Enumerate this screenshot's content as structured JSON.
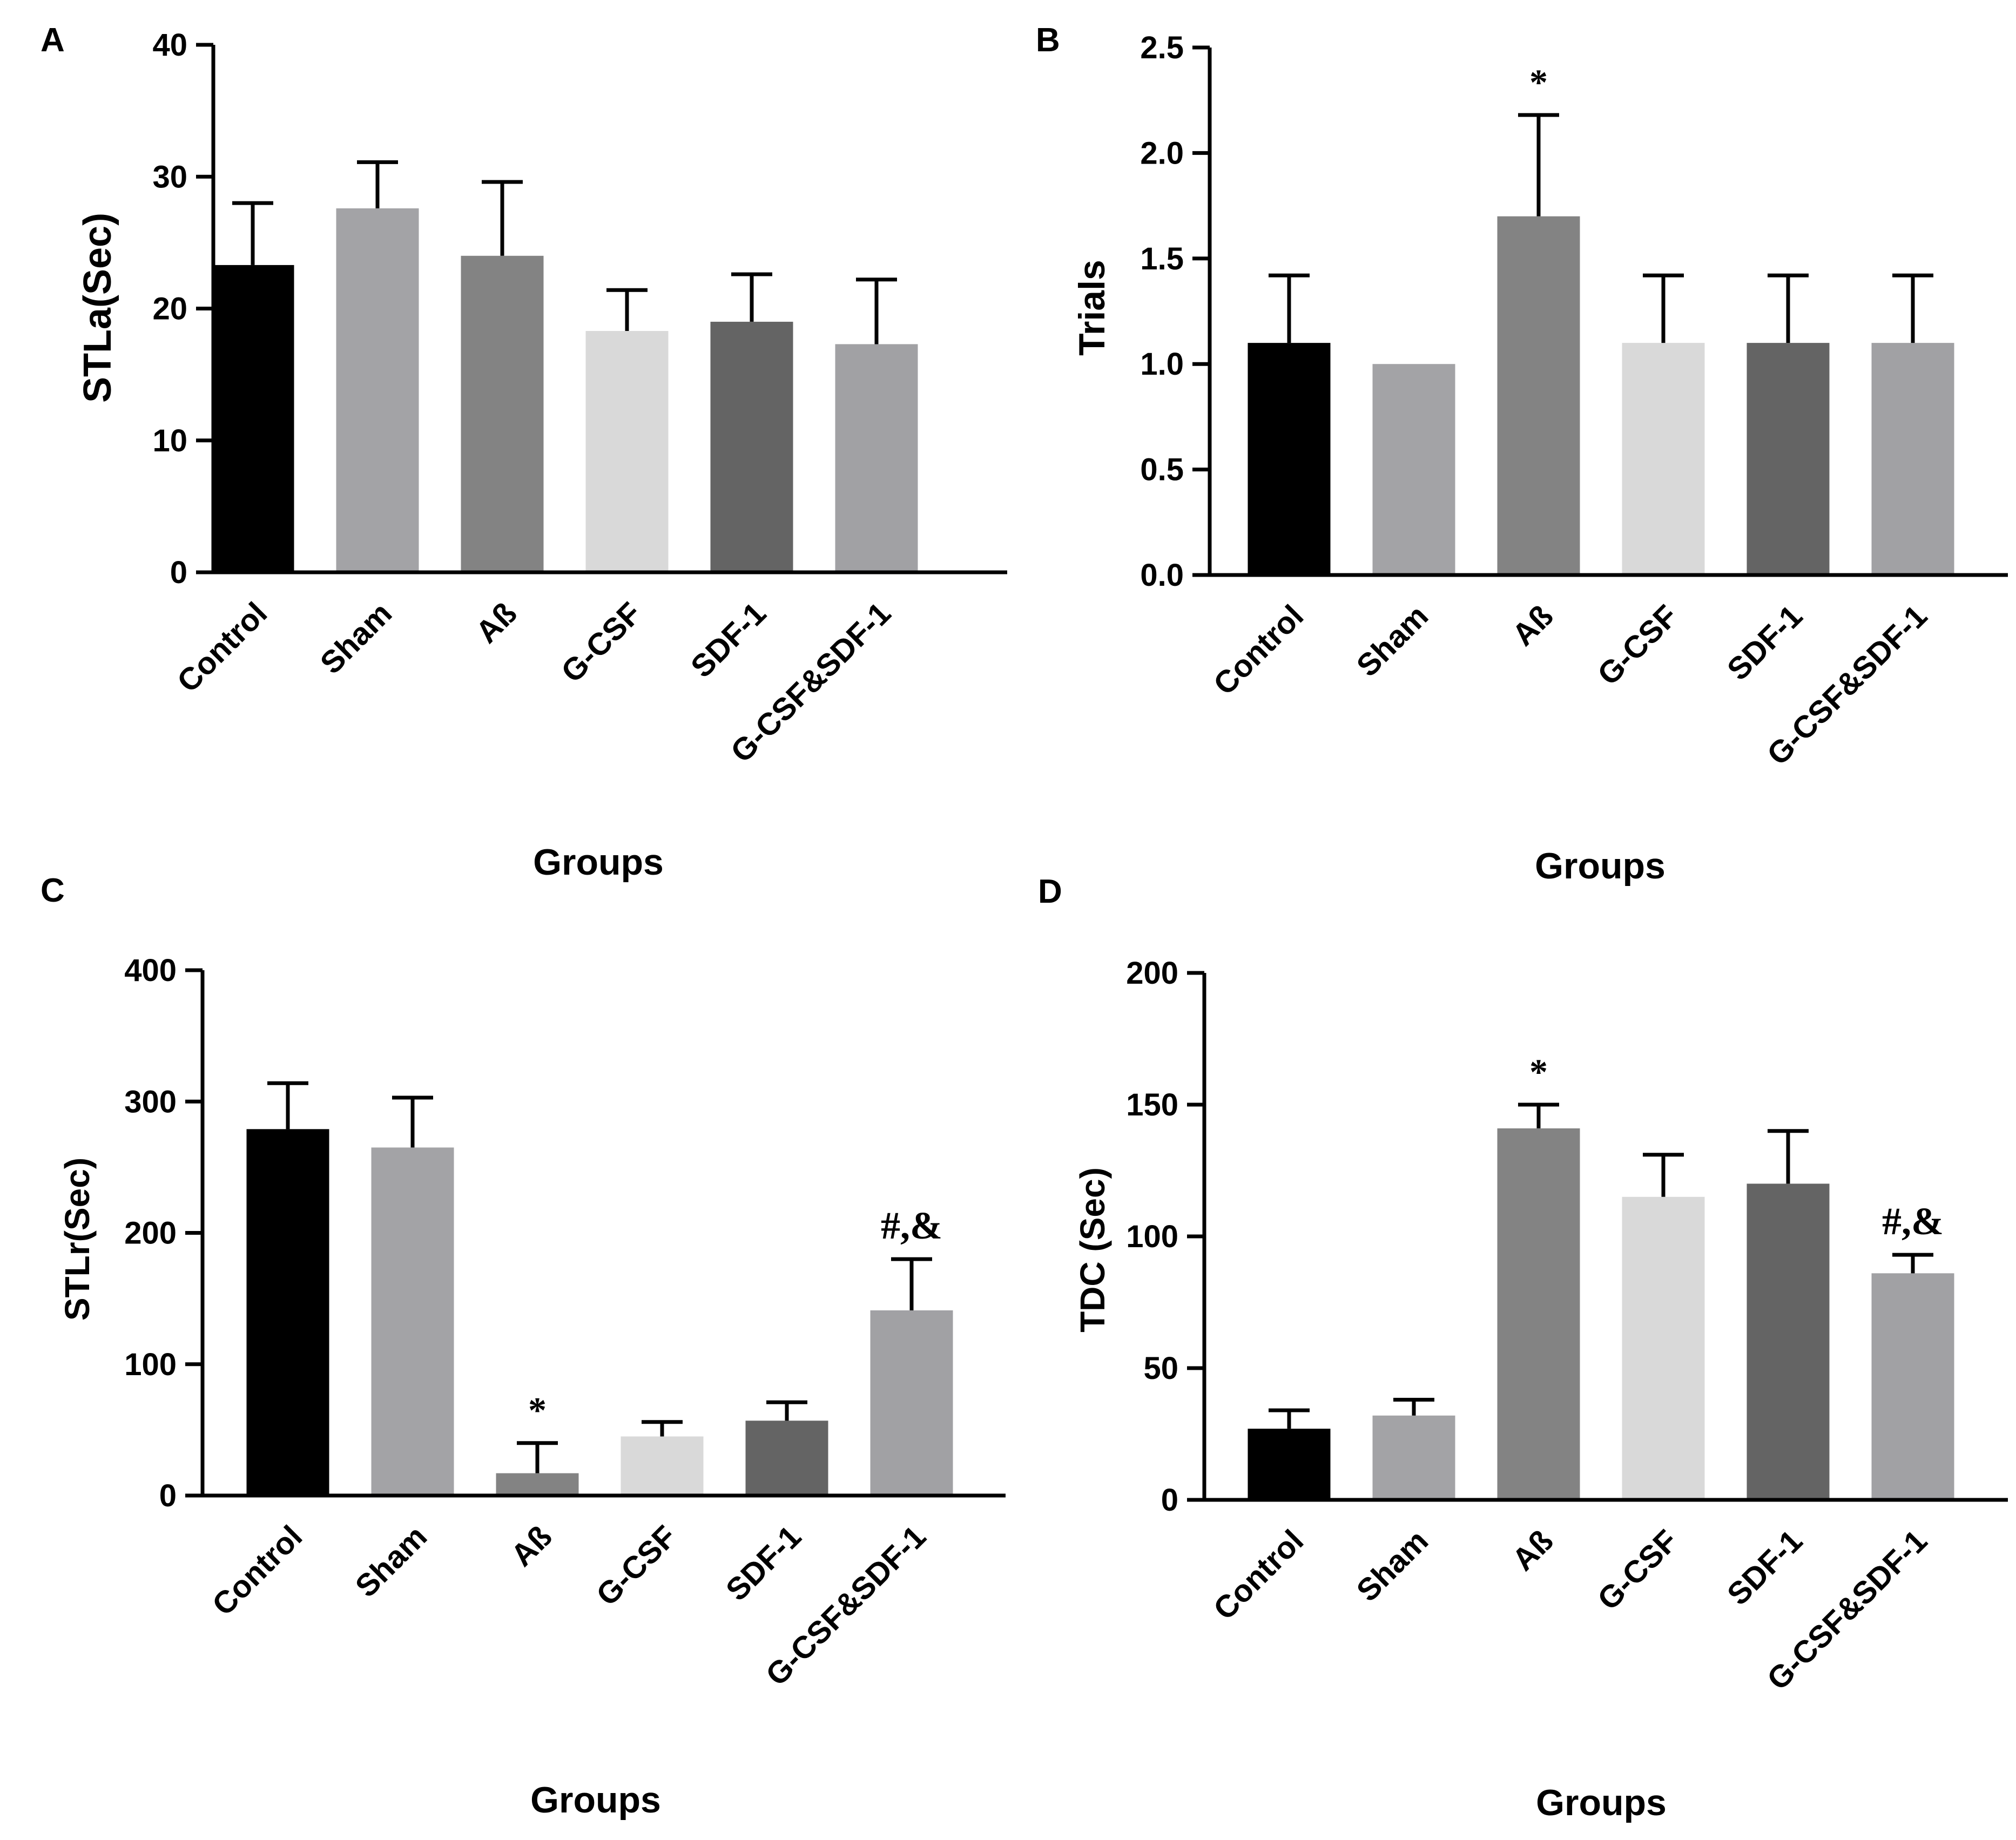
{
  "colors": {
    "Control": "#000000",
    "Sham": "#a3a3a6",
    "Aß": "#838383",
    "G-CSF": "#d9d9d9",
    "SDF-1": "#646464",
    "G-CSF&SDF-1": "#a1a1a4"
  },
  "chart_data": [
    {
      "panel": "A",
      "type": "bar",
      "title": "",
      "xlabel": "Groups",
      "ylabel": "STLa(Sec)",
      "categories": [
        "Control",
        "Sham",
        "Aß",
        "G-CSF",
        "SDF-1",
        "G-CSF&SDF-1"
      ],
      "values": [
        23.3,
        27.6,
        24.0,
        18.3,
        19.0,
        17.3
      ],
      "errors": [
        4.7,
        3.5,
        5.6,
        3.1,
        3.6,
        4.9
      ],
      "annotations": [
        "",
        "",
        "",
        "",
        "",
        ""
      ],
      "ylim": [
        0,
        40
      ],
      "yticks": [
        0,
        10,
        20,
        30,
        40
      ],
      "ytick_labels": [
        "0",
        "10",
        "20",
        "30",
        "40"
      ]
    },
    {
      "panel": "B",
      "type": "bar",
      "title": "",
      "xlabel": "Groups",
      "ylabel": "Trials",
      "categories": [
        "Control",
        "Sham",
        "Aß",
        "G-CSF",
        "SDF-1",
        "G-CSF&SDF-1"
      ],
      "values": [
        1.1,
        1.0,
        1.7,
        1.1,
        1.1,
        1.1
      ],
      "errors": [
        0.32,
        0,
        0.48,
        0.32,
        0.32,
        0.32
      ],
      "annotations": [
        "",
        "",
        "*",
        "",
        "",
        ""
      ],
      "ylim": [
        0,
        2.5
      ],
      "yticks": [
        0,
        0.5,
        1.0,
        1.5,
        2.0,
        2.5
      ],
      "ytick_labels": [
        "0.0",
        "0.5",
        "1.0",
        "1.5",
        "2.0",
        "2.5"
      ]
    },
    {
      "panel": "C",
      "type": "bar",
      "title": "",
      "xlabel": "Groups",
      "ylabel": "STLr(Sec)",
      "categories": [
        "Control",
        "Sham",
        "Aß",
        "G-CSF",
        "SDF-1",
        "G-CSF&SDF-1"
      ],
      "values": [
        279,
        265,
        17,
        45,
        57,
        141
      ],
      "errors": [
        35,
        38,
        23,
        11,
        14,
        39
      ],
      "annotations": [
        "",
        "",
        "*",
        "",
        "",
        "#,&"
      ],
      "ylim": [
        0,
        400
      ],
      "yticks": [
        0,
        100,
        200,
        300,
        400
      ],
      "ytick_labels": [
        "0",
        "100",
        "200",
        "300",
        "400"
      ]
    },
    {
      "panel": "D",
      "type": "bar",
      "title": "",
      "xlabel": "Groups",
      "ylabel": "TDC (Sec)",
      "categories": [
        "Control",
        "Sham",
        "Aß",
        "G-CSF",
        "SDF-1",
        "G-CSF&SDF-1"
      ],
      "values": [
        27,
        32,
        141,
        115,
        120,
        86
      ],
      "errors": [
        7,
        6,
        9,
        16,
        20,
        7
      ],
      "annotations": [
        "",
        "",
        "*",
        "",
        "",
        "#,&"
      ],
      "ylim": [
        0,
        200
      ],
      "yticks": [
        0,
        50,
        100,
        150,
        200
      ],
      "ytick_labels": [
        "0",
        "50",
        "100",
        "150",
        "200"
      ]
    }
  ]
}
